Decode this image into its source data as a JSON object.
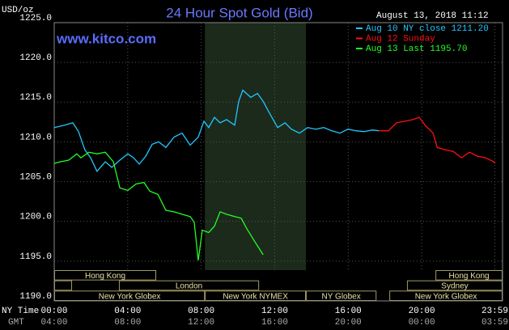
{
  "chart_data": {
    "type": "line",
    "title": "24 Hour Spot Gold (Bid)",
    "unit_label": "USD/oz",
    "timestamp": "August 13, 2018 11:12",
    "site": "www.kitco.com",
    "x_row_labels": [
      "NY Time",
      "GMT"
    ],
    "xlim": [
      0,
      24.4
    ],
    "ylim": [
      1190,
      1225
    ],
    "grid": true,
    "legend": "top-right",
    "yticks": [
      {
        "value": 1190,
        "label": "1190.0"
      },
      {
        "value": 1195,
        "label": "1195.0"
      },
      {
        "value": 1200,
        "label": "1200.0"
      },
      {
        "value": 1205,
        "label": "1205.0"
      },
      {
        "value": 1210,
        "label": "1210.0"
      },
      {
        "value": 1215,
        "label": "1215.0"
      },
      {
        "value": 1220,
        "label": "1220.0"
      },
      {
        "value": 1225,
        "label": "1225.0"
      }
    ],
    "xticks": [
      {
        "value": 0,
        "label": "00:00"
      },
      {
        "value": 4,
        "label": "04:00"
      },
      {
        "value": 8,
        "label": "08:00"
      },
      {
        "value": 12,
        "label": "12:00"
      },
      {
        "value": 16,
        "label": "16:00"
      },
      {
        "value": 20,
        "label": "20:00"
      },
      {
        "value": 23.98,
        "label": "23:59"
      }
    ],
    "gmt_labels": [
      "04:00",
      "08:00",
      "12:00",
      "16:00",
      "20:00",
      "00:00",
      "03:59"
    ],
    "shaded_span": [
      8.2,
      13.7
    ],
    "session_rows": [
      [
        {
          "label": "Hong Kong",
          "start": 0,
          "end": 5.55
        },
        {
          "label": "Hong Kong",
          "start": 20.75,
          "end": 24.4
        }
      ],
      [
        {
          "label": null,
          "start": 0,
          "end": 0.97
        },
        {
          "label": "London",
          "start": 3.52,
          "end": 11.15
        },
        {
          "label": "Sydney",
          "start": 19.2,
          "end": 24.4
        }
      ],
      [
        {
          "label": "New York Globex",
          "start": 0,
          "end": 8.2
        },
        {
          "label": "New York NYMEX",
          "start": 8.2,
          "end": 13.7
        },
        {
          "label": "NY Globex",
          "start": 13.7,
          "end": 17.54
        },
        {
          "label": "New York Globex",
          "start": 18.24,
          "end": 24.4
        }
      ]
    ],
    "series": [
      {
        "name": "Aug 10 NY close 1211.20",
        "color": "#20c8ff",
        "x": [
          0,
          0.57,
          1.01,
          1.32,
          1.67,
          1.98,
          2.33,
          2.78,
          3.13,
          3.57,
          4.01,
          4.32,
          4.63,
          4.98,
          5.33,
          5.68,
          6.08,
          6.52,
          6.96,
          7.4,
          7.84,
          8.15,
          8.41,
          8.72,
          9.03,
          9.38,
          9.82,
          10.04,
          10.26,
          10.7,
          11.06,
          11.37,
          11.72,
          12.16,
          12.56,
          12.91,
          13.35,
          13.79,
          14.23,
          14.67,
          15.11,
          15.55,
          15.99,
          16.43,
          16.87,
          17.31,
          17.67
        ],
        "values": [
          1211.8,
          1212.1,
          1212.4,
          1211.3,
          1209.0,
          1208.0,
          1206.3,
          1207.5,
          1206.8,
          1207.7,
          1208.5,
          1208.0,
          1207.2,
          1208.2,
          1209.7,
          1210.0,
          1209.3,
          1210.6,
          1211.1,
          1209.6,
          1210.6,
          1212.6,
          1211.8,
          1213.1,
          1212.4,
          1212.8,
          1212.1,
          1215.1,
          1216.5,
          1215.6,
          1216.1,
          1215.1,
          1213.6,
          1211.8,
          1212.4,
          1211.6,
          1211.1,
          1211.8,
          1211.6,
          1211.8,
          1211.4,
          1211.1,
          1211.6,
          1211.4,
          1211.3,
          1211.5,
          1211.4
        ]
      },
      {
        "name": "Aug 12 Sunday",
        "color": "#ff1010",
        "x": [
          17.67,
          18.19,
          18.63,
          19.07,
          19.52,
          19.87,
          20.18,
          20.62,
          20.84,
          21.28,
          21.72,
          22.16,
          22.6,
          23.04,
          23.48,
          23.92,
          24.0
        ],
        "values": [
          1211.4,
          1211.4,
          1212.4,
          1212.6,
          1212.8,
          1213.1,
          1212.1,
          1211.1,
          1209.3,
          1209.0,
          1208.8,
          1208.0,
          1208.7,
          1208.2,
          1208.0,
          1207.5,
          1207.3
        ]
      },
      {
        "name": "Aug 13 Last 1195.70",
        "color": "#22ff22",
        "x": [
          0,
          0.35,
          0.79,
          1.23,
          1.45,
          1.89,
          2.33,
          2.78,
          3.22,
          3.57,
          4.01,
          4.45,
          4.89,
          5.2,
          5.64,
          6.08,
          6.52,
          6.96,
          7.4,
          7.62,
          7.84,
          8.06,
          8.41,
          8.72,
          9.03,
          9.38,
          9.82,
          10.18,
          10.48,
          10.93,
          11.15,
          11.37
        ],
        "values": [
          1207.3,
          1207.5,
          1207.7,
          1208.5,
          1208.0,
          1208.7,
          1208.5,
          1208.7,
          1207.5,
          1204.2,
          1203.9,
          1204.7,
          1204.9,
          1203.8,
          1203.4,
          1201.4,
          1201.2,
          1200.9,
          1200.6,
          1199.9,
          1195.1,
          1198.9,
          1198.6,
          1199.4,
          1201.2,
          1200.9,
          1200.6,
          1200.4,
          1199.1,
          1197.4,
          1196.6,
          1195.8
        ]
      }
    ]
  }
}
